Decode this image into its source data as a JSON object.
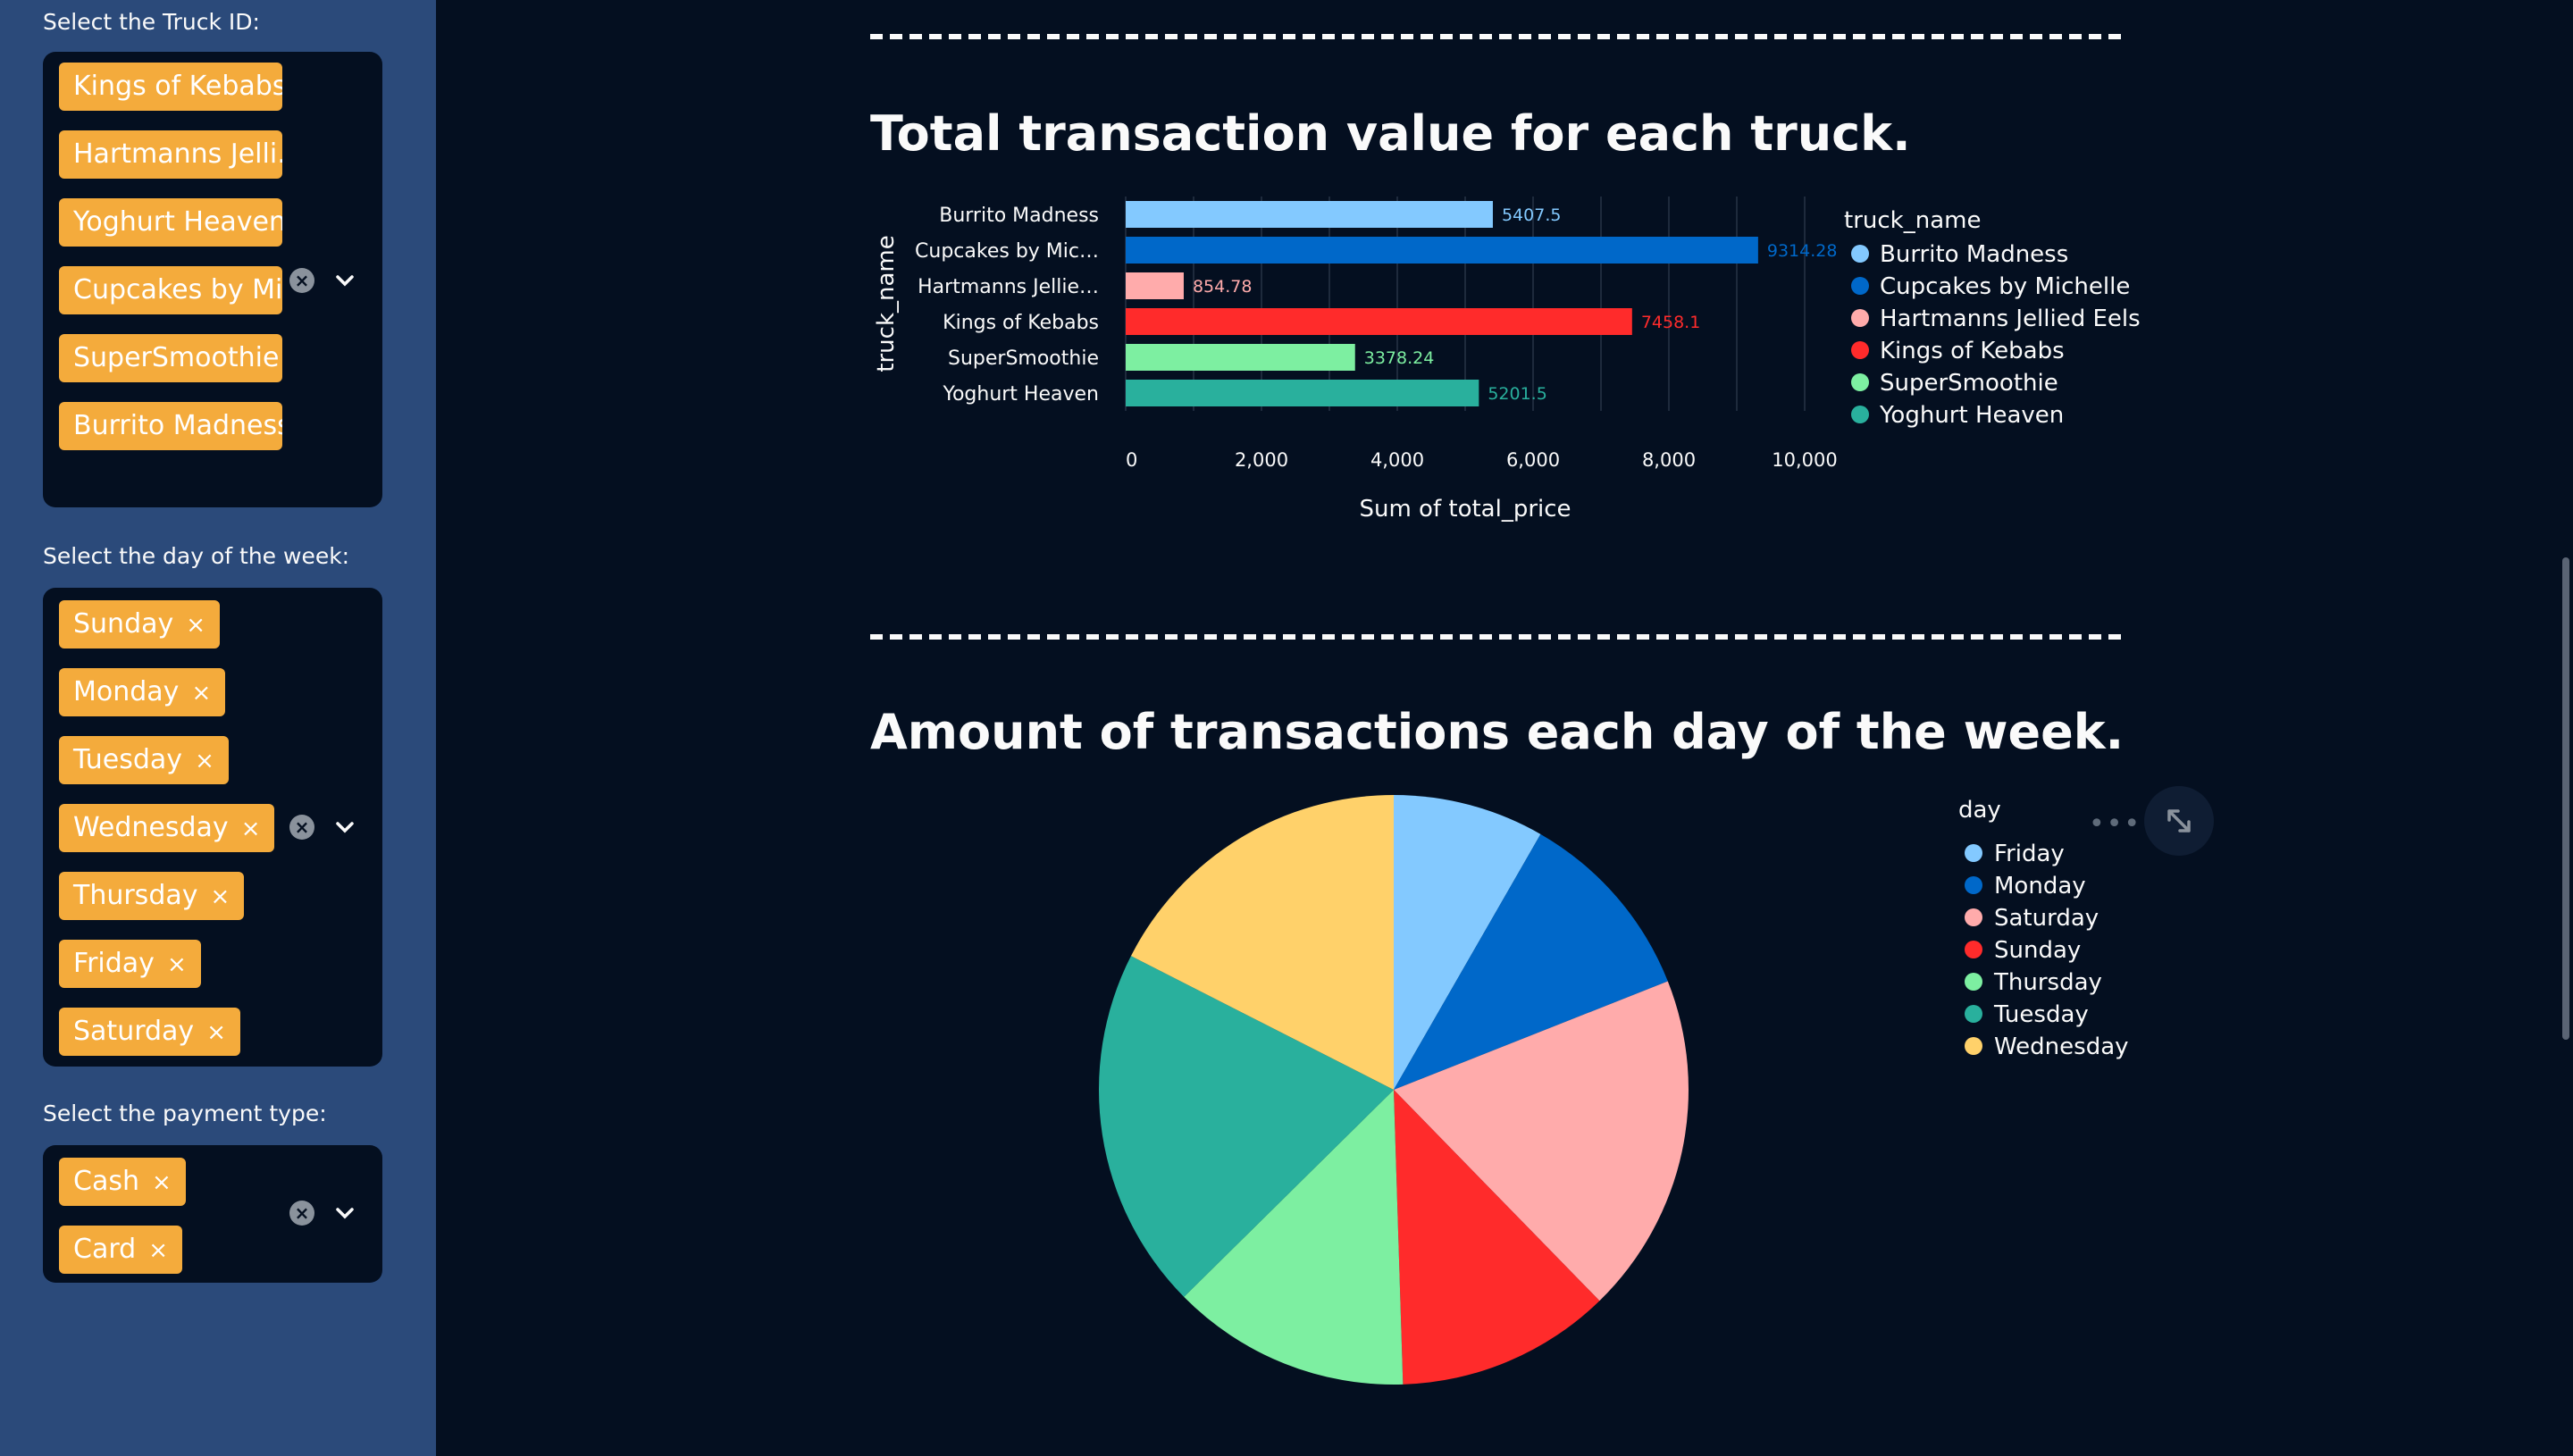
{
  "sidebar": {
    "truck_label": "Select the Truck ID:",
    "truck_tags": [
      "Kings of Kebabs",
      "Hartmanns Jelli…",
      "Yoghurt Heaven",
      "Cupcakes by Mic…",
      "SuperSmoothie",
      "Burrito Madness"
    ],
    "day_label": "Select the day of the week:",
    "day_tags": [
      "Sunday",
      "Monday",
      "Tuesday",
      "Wednesday",
      "Thursday",
      "Friday",
      "Saturday"
    ],
    "payment_label": "Select the payment type:",
    "payment_tags": [
      "Cash",
      "Card"
    ],
    "remove_glyph": "×"
  },
  "main": {
    "bar_title": "Total transaction value for each truck.",
    "pie_title": "Amount of transactions each day of the week."
  },
  "chart_data": [
    {
      "type": "bar",
      "orientation": "horizontal",
      "title": "Total transaction value for each truck.",
      "xlabel": "Sum of total_price",
      "ylabel": "truck_name",
      "categories": [
        "Burrito Madness",
        "Cupcakes by Mic…",
        "Hartmanns Jellie…",
        "Kings of Kebabs",
        "SuperSmoothie",
        "Yoghurt Heaven"
      ],
      "values": [
        5407.5,
        9314.28,
        854.78,
        7458.1,
        3378.24,
        5201.5
      ],
      "value_labels": [
        "5407.5",
        "9314.28",
        "854.78",
        "7458.1",
        "3378.24",
        "5201.5"
      ],
      "colors": [
        "#83c9ff",
        "#0068c9",
        "#ffabab",
        "#ff2b2b",
        "#7defa1",
        "#29b09d"
      ],
      "xlim": [
        0,
        10000
      ],
      "xticks": [
        0,
        2000,
        4000,
        6000,
        8000,
        10000
      ],
      "xtick_labels": [
        "0",
        "2,000",
        "4,000",
        "6,000",
        "8,000",
        "10,000"
      ],
      "legend_title": "truck_name",
      "legend": [
        "Burrito Madness",
        "Cupcakes by Michelle",
        "Hartmanns Jellied Eels",
        "Kings of Kebabs",
        "SuperSmoothie",
        "Yoghurt Heaven"
      ],
      "legend_position": "right",
      "grid": true
    },
    {
      "type": "pie",
      "title": "Amount of transactions each day of the week.",
      "labels": [
        "Friday",
        "Monday",
        "Saturday",
        "Sunday",
        "Thursday",
        "Tuesday",
        "Wednesday"
      ],
      "values": [
        8.3,
        10.7,
        18.7,
        11.8,
        13.1,
        19.9,
        17.5
      ],
      "colors": [
        "#83c9ff",
        "#0068c9",
        "#ffabab",
        "#ff2b2b",
        "#7defa1",
        "#29b09d",
        "#ffd16a"
      ],
      "legend_title": "day",
      "legend_position": "right"
    }
  ]
}
